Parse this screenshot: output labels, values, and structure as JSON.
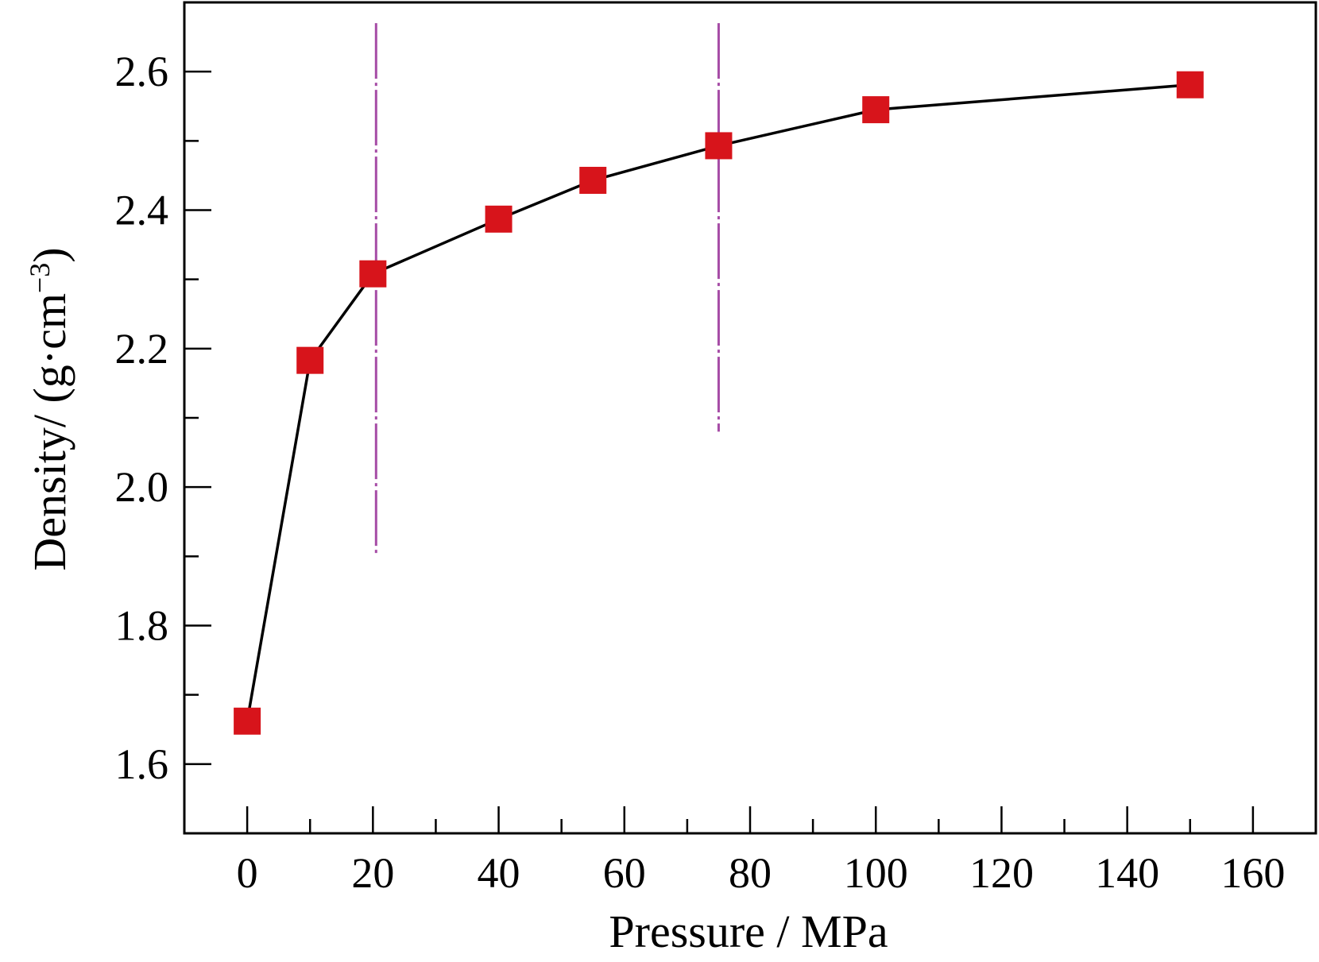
{
  "chart_data": {
    "type": "line",
    "xlabel": "Pressure / MPa",
    "ylabel_main": "Density/ (g·cm",
    "ylabel_sup": "−3",
    "ylabel_close": ")",
    "xlim": [
      -10,
      170
    ],
    "ylim": [
      1.5,
      2.7
    ],
    "xticks": [
      0,
      20,
      40,
      60,
      80,
      100,
      120,
      140,
      160
    ],
    "xtick_labels": [
      "0",
      "20",
      "40",
      "60",
      "80",
      "100",
      "120",
      "140",
      "160"
    ],
    "x_minor_step": 10,
    "yticks": [
      1.6,
      1.8,
      2.0,
      2.2,
      2.4,
      2.6
    ],
    "ytick_labels": [
      "1.6",
      "1.8",
      "2.0",
      "2.2",
      "2.4",
      "2.6"
    ],
    "y_minor_step": 0.1,
    "grid": false,
    "series": [
      {
        "x": [
          0,
          10,
          20,
          40,
          55,
          75,
          100,
          150
        ],
        "y": [
          1.662,
          2.183,
          2.308,
          2.387,
          2.443,
          2.493,
          2.545,
          2.581
        ],
        "marker": "square",
        "marker_color": "#d7141b",
        "line_color": "#000000"
      }
    ],
    "vlines": [
      {
        "x": 20.5,
        "y_from": 1.9,
        "y_to": 2.67,
        "color": "#a64ca6",
        "style": "dash-dot"
      },
      {
        "x": 75,
        "y_from": 2.08,
        "y_to": 2.67,
        "color": "#a64ca6",
        "style": "dash-dot"
      }
    ]
  }
}
